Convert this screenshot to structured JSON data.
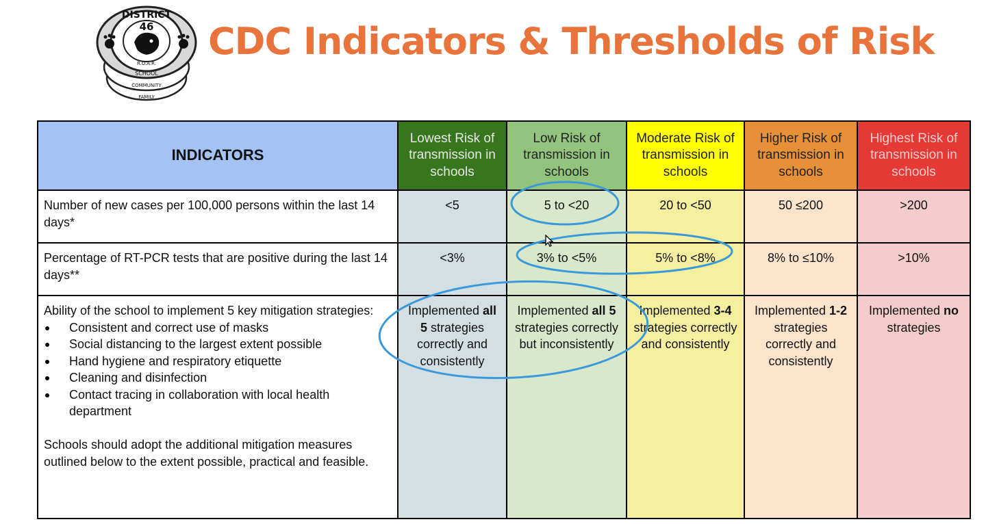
{
  "logo": {
    "district": "DISTRICT",
    "number": "46",
    "motto": "R.O.A.R.",
    "ring1": "SCHOOL",
    "ring2": "COMMUNITY",
    "ring3": "FAMILY"
  },
  "title": "CDC Indicators & Thresholds of Risk",
  "table": {
    "indicators_header": "INDICATORS",
    "levels": [
      {
        "label": "Lowest Risk of transmission in schools",
        "color": "#38761D",
        "text_color": "#E8E8E8"
      },
      {
        "label": "Low Risk of transmission in schools",
        "color": "#93C47D",
        "text_color": "#222222"
      },
      {
        "label": "Moderate Risk of transmission in schools",
        "color": "#FFFF00",
        "text_color": "#222222"
      },
      {
        "label": "Higher Risk of transmission in schools",
        "color": "#E69138",
        "text_color": "#222222"
      },
      {
        "label": "Highest Risk of transmission in schools",
        "color": "#E53935",
        "text_color": "#F4CCCC"
      }
    ],
    "rows": [
      {
        "indicator": "Number of new cases per 100,000 persons within the last 14 days*",
        "values": [
          "<5",
          "5 to <20",
          "20 to <50",
          "50 ≤200",
          ">200"
        ]
      },
      {
        "indicator": "Percentage of RT-PCR tests that are positive during the last 14 days**",
        "values": [
          "<3%",
          "3% to <5%",
          "5% to <8%",
          "8% to ≤10%",
          ">10%"
        ]
      }
    ],
    "mitigation": {
      "intro": "Ability of the school to implement 5 key mitigation strategies:",
      "strategies": [
        "Consistent and correct use of masks",
        "Social distancing to the largest extent possible",
        "Hand hygiene and respiratory etiquette",
        "Cleaning and disinfection",
        "Contact tracing in collaboration with local health department"
      ],
      "note": "Schools should adopt the additional mitigation measures outlined below to the extent possible, practical and feasible.",
      "values": [
        {
          "pre": "Implemented ",
          "bold": "all 5",
          "post": " strategies correctly and consistently"
        },
        {
          "pre": "Implemented ",
          "bold": "all 5",
          "post": " strategies correctly but inconsistently"
        },
        {
          "pre": "Implemented ",
          "bold": "3-4",
          "post": " strategies correctly and consistently"
        },
        {
          "pre": "Implemented ",
          "bold": "1-2",
          "post": " strategies correctly and consistently"
        },
        {
          "pre": "Implemented ",
          "bold": "no",
          "post": " strategies"
        }
      ]
    }
  },
  "annotation_color": "#3A9AD9"
}
